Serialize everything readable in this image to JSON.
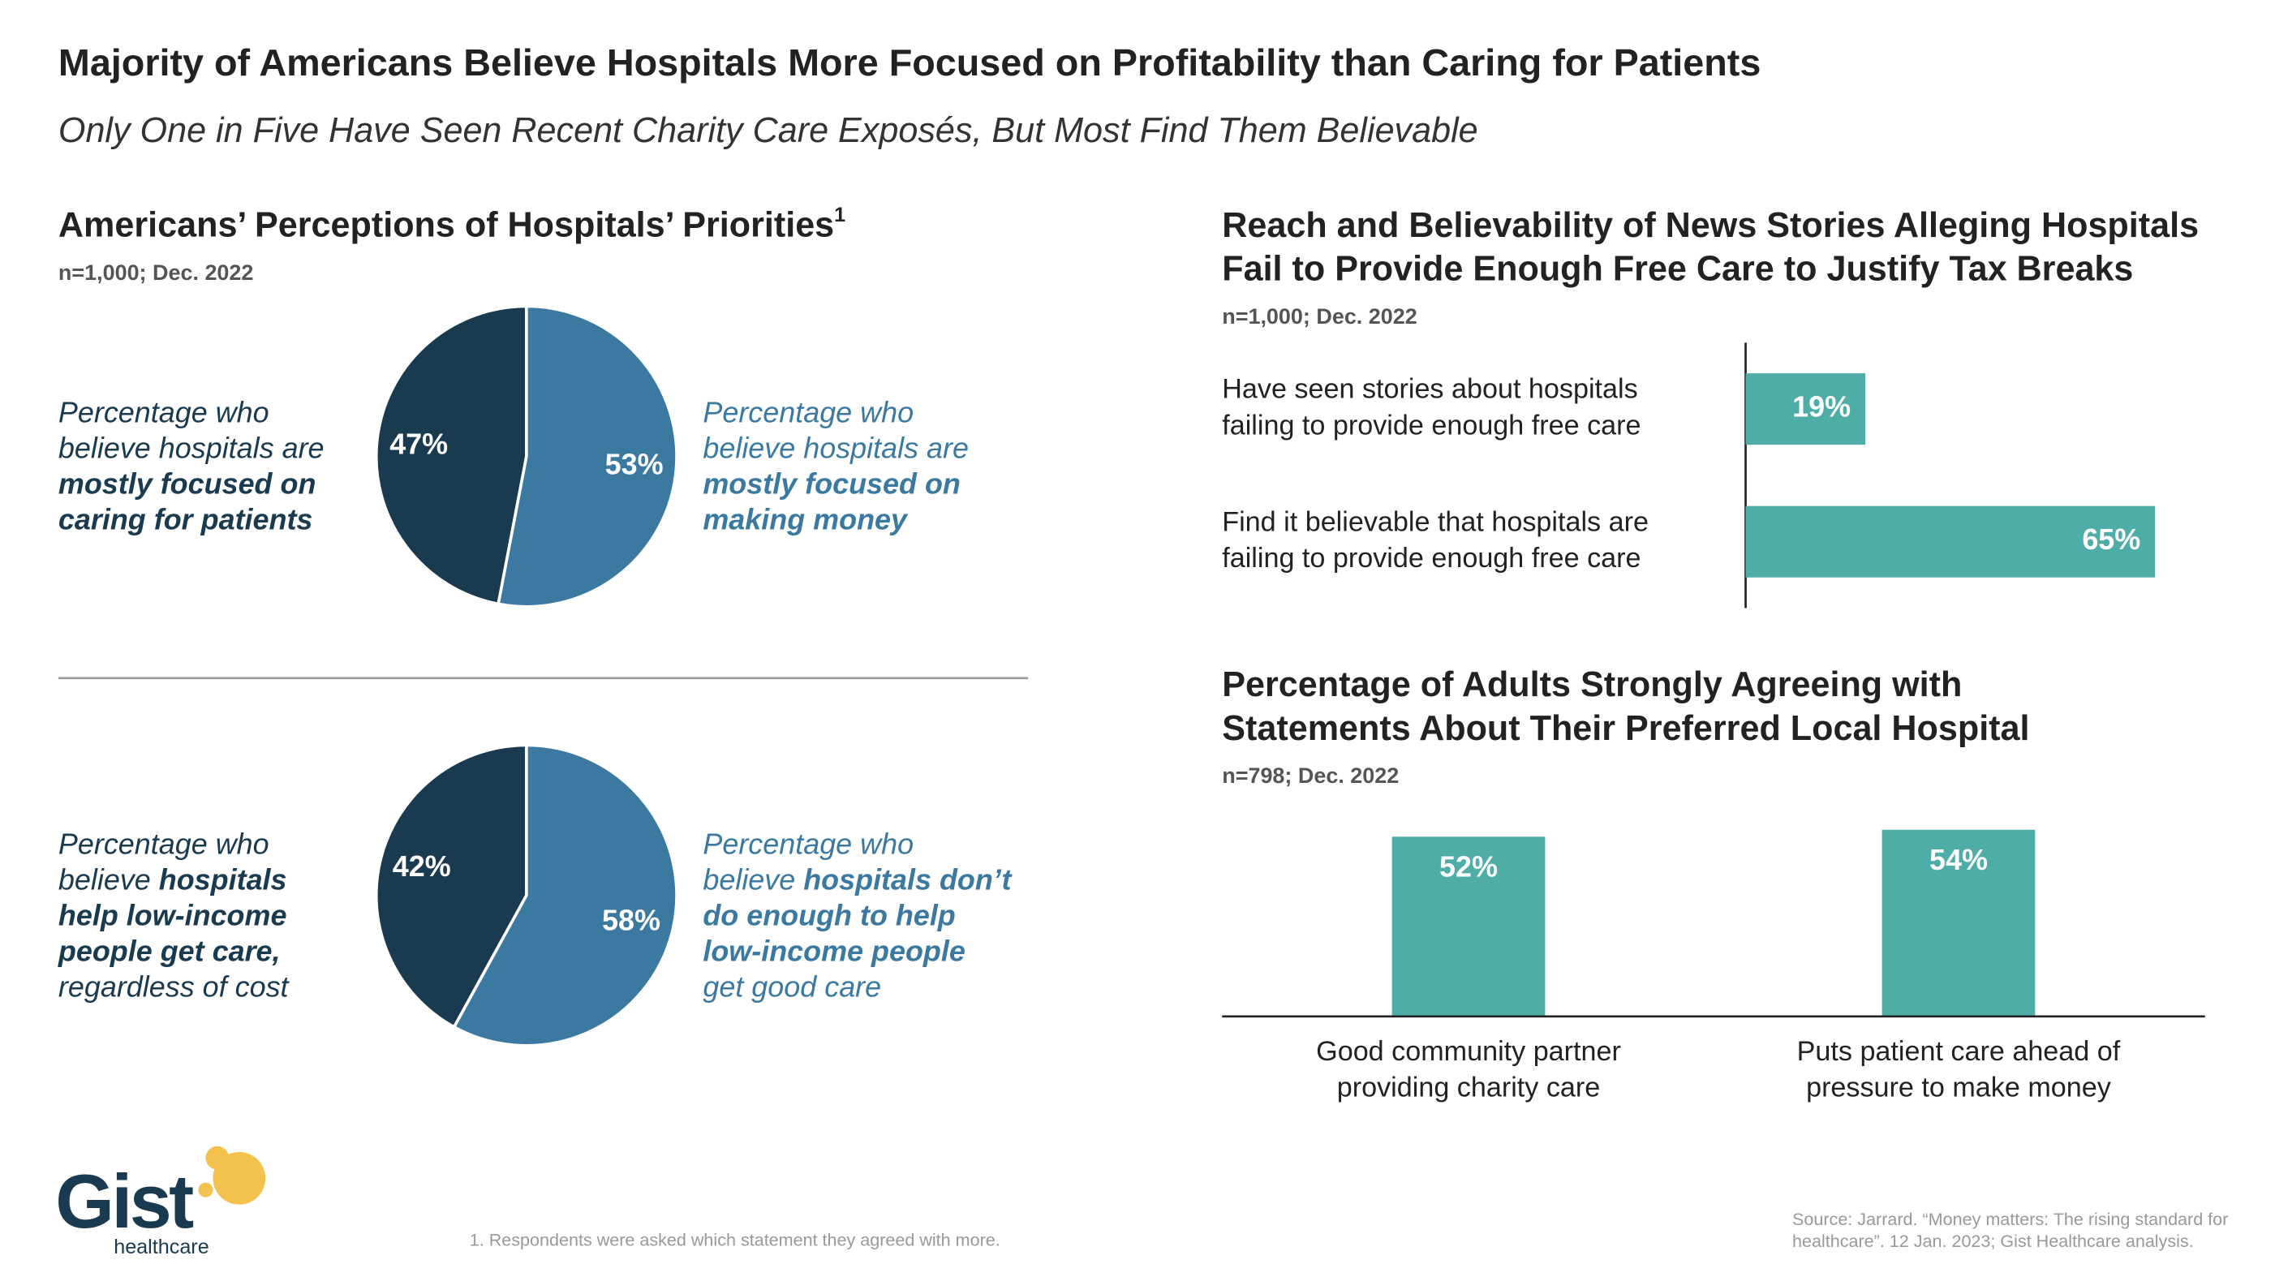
{
  "header": {
    "title": "Majority of Americans Believe Hospitals More Focused on Profitability than Caring for Patients",
    "subtitle": "Only One in Five Have Seen Recent Charity Care Exposés, But Most Find Them Believable"
  },
  "chart_data": [
    {
      "type": "pie",
      "title": "Americans’ Perceptions of Hospitals’ Priorities",
      "title_mark": "1",
      "subtitle": "n=1,000; Dec. 2022",
      "values": [
        47,
        53
      ],
      "value_labels": [
        "47%",
        "53%"
      ],
      "colors": [
        "#1a3a4f",
        "#3b79a0"
      ],
      "annotations": [
        {
          "side": "left",
          "color": "#1a3a4f",
          "lines": [
            [
              {
                "text": "Percentage who"
              }
            ],
            [
              {
                "text": "believe hospitals are"
              }
            ],
            [
              {
                "text": "mostly focused on",
                "bold": true
              }
            ],
            [
              {
                "text": "caring for patients",
                "bold": true
              }
            ]
          ]
        },
        {
          "side": "right",
          "color": "#3b79a0",
          "lines": [
            [
              {
                "text": "Percentage who"
              }
            ],
            [
              {
                "text": "believe hospitals are"
              }
            ],
            [
              {
                "text": "mostly focused on",
                "bold": true
              }
            ],
            [
              {
                "text": "making money",
                "bold": true
              }
            ]
          ]
        }
      ]
    },
    {
      "type": "pie",
      "values": [
        42,
        58
      ],
      "value_labels": [
        "42%",
        "58%"
      ],
      "colors": [
        "#1a3a4f",
        "#3b79a0"
      ],
      "annotations": [
        {
          "side": "left",
          "color": "#1a3a4f",
          "lines": [
            [
              {
                "text": "Percentage who"
              }
            ],
            [
              {
                "text": "believe "
              },
              {
                "text": "hospitals",
                "bold": true
              }
            ],
            [
              {
                "text": "help low-income",
                "bold": true
              }
            ],
            [
              {
                "text": "people get care,",
                "bold": true
              }
            ],
            [
              {
                "text": "regardless of cost"
              }
            ]
          ]
        },
        {
          "side": "right",
          "color": "#3b79a0",
          "lines": [
            [
              {
                "text": "Percentage who"
              }
            ],
            [
              {
                "text": "believe "
              },
              {
                "text": "hospitals don’t",
                "bold": true
              }
            ],
            [
              {
                "text": "do enough to help",
                "bold": true
              }
            ],
            [
              {
                "text": "low-income people",
                "bold": true
              }
            ],
            [
              {
                "text": "get good care"
              }
            ]
          ]
        }
      ]
    },
    {
      "type": "bar",
      "orientation": "horizontal",
      "title": [
        "Reach and Believability of News Stories Alleging Hospitals",
        "Fail to Provide Enough Free Care to Justify Tax Breaks"
      ],
      "subtitle": "n=1,000; Dec. 2022",
      "categories": [
        [
          "Have seen stories about hospitals",
          "failing to provide enough free care"
        ],
        [
          "Find it believable that hospitals are",
          "failing to provide enough free care"
        ]
      ],
      "values": [
        19,
        65
      ],
      "value_labels": [
        "19%",
        "65%"
      ],
      "color": "#4fada8"
    },
    {
      "type": "bar",
      "orientation": "vertical",
      "title": [
        "Percentage of Adults Strongly Agreeing with",
        "Statements About Their Preferred Local Hospital"
      ],
      "subtitle": "n=798; Dec. 2022",
      "categories": [
        [
          "Good community partner",
          "providing charity care"
        ],
        [
          "Puts patient care ahead of",
          "pressure to make money"
        ]
      ],
      "values": [
        52,
        54
      ],
      "value_labels": [
        "52%",
        "54%"
      ],
      "color": "#4fada8"
    }
  ],
  "footnote": "1. Respondents were asked which statement they agreed with more.",
  "source": [
    "Source: Jarrard. “Money matters: The rising standard for",
    "healthcare”. 12 Jan. 2023; Gist Healthcare analysis."
  ],
  "logo": {
    "name": "Gist",
    "tagline": "healthcare"
  }
}
